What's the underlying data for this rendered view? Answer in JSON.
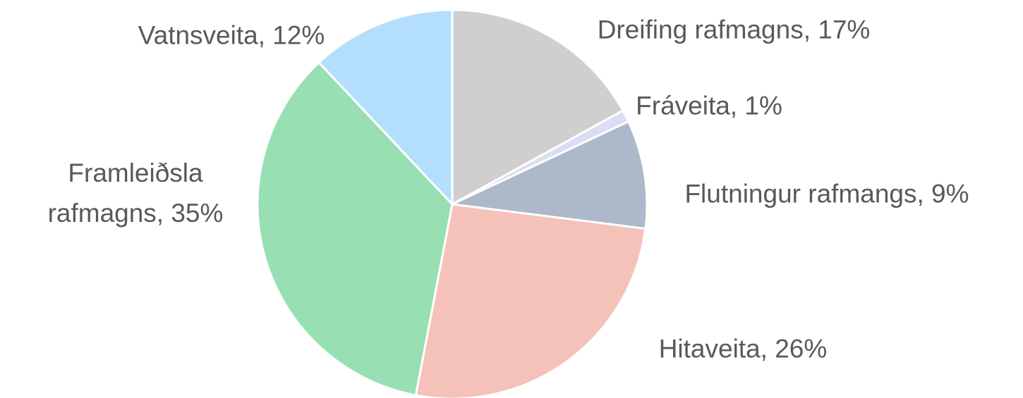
{
  "chart_data": {
    "type": "pie",
    "values": [
      17,
      1,
      9,
      26,
      35,
      12
    ],
    "value_labels": [
      "Dreifing rafmagns, 17%",
      "Fráveita, 1%",
      "Flutningur rafmangs, 9%",
      "Hitaveita, 26%",
      "Framleiðsla rafmagns, 35%",
      "Vatnsveita, 12%"
    ],
    "colors": [
      "#d0cece",
      "#dcdcf2",
      "#adb9ca",
      "#f4c2b9",
      "#98dfb3",
      "#b3dffc"
    ]
  }
}
